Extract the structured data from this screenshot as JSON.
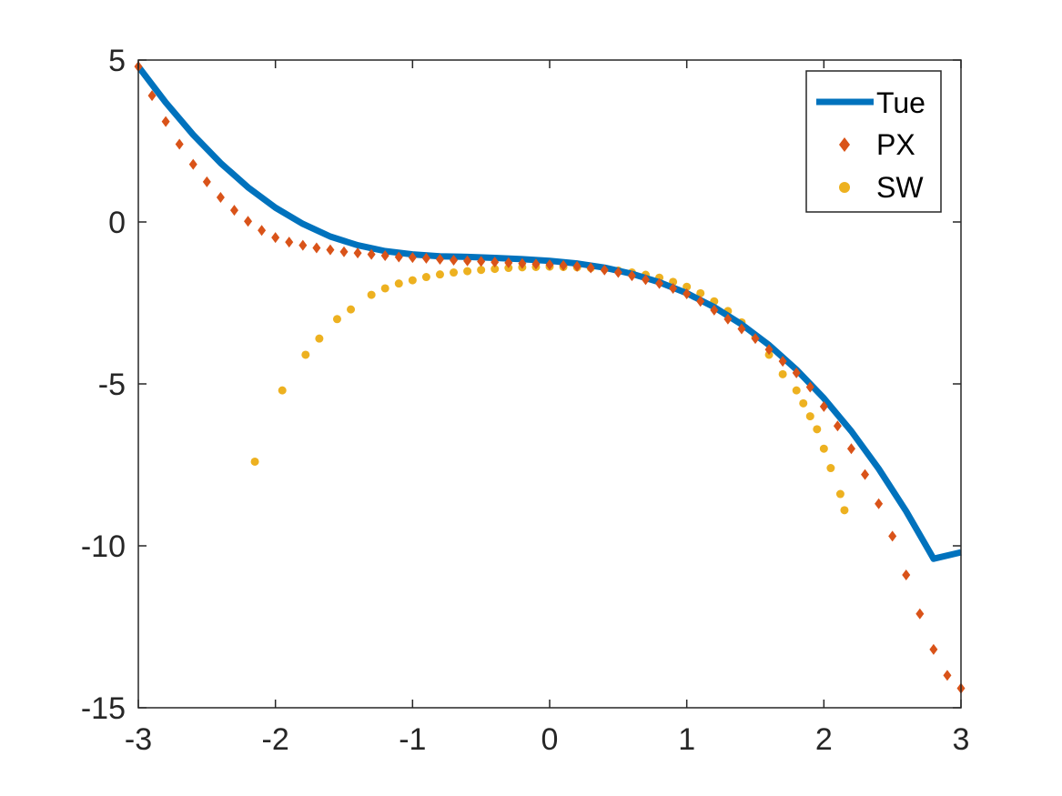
{
  "chart_data": {
    "type": "scatter",
    "title": "",
    "xlabel": "",
    "ylabel": "",
    "xlim": [
      -3,
      3
    ],
    "ylim": [
      -15,
      5
    ],
    "xticks": [
      -3,
      -2,
      -1,
      0,
      1,
      2,
      3
    ],
    "yticks": [
      -15,
      -10,
      -5,
      0,
      5
    ],
    "grid": false,
    "legend_position": "top-right",
    "series": [
      {
        "name": "Tue",
        "kind": "line",
        "color": "#0072BD",
        "x": [
          -3.0,
          -2.8,
          -2.6,
          -2.4,
          -2.2,
          -2.0,
          -1.8,
          -1.6,
          -1.4,
          -1.2,
          -1.0,
          -0.8,
          -0.6,
          -0.4,
          -0.2,
          0.0,
          0.2,
          0.4,
          0.6,
          0.8,
          1.0,
          1.2,
          1.4,
          1.6,
          1.8,
          2.0,
          2.2,
          2.4,
          2.6,
          2.8,
          3.0
        ],
        "y": [
          4.8,
          3.69,
          2.69,
          1.82,
          1.07,
          0.44,
          -0.06,
          -0.45,
          -0.72,
          -0.9,
          -1.0,
          -1.06,
          -1.08,
          -1.11,
          -1.15,
          -1.2,
          -1.28,
          -1.41,
          -1.6,
          -1.86,
          -2.2,
          -2.63,
          -3.16,
          -3.8,
          -4.56,
          -5.44,
          -6.46,
          -7.62,
          -8.93,
          -10.4,
          -10.2
        ]
      },
      {
        "name": "PX",
        "kind": "diamond",
        "color": "#D95319",
        "x": [
          -3.0,
          -2.9,
          -2.8,
          -2.7,
          -2.6,
          -2.5,
          -2.4,
          -2.3,
          -2.2,
          -2.1,
          -2.0,
          -1.9,
          -1.8,
          -1.7,
          -1.6,
          -1.5,
          -1.4,
          -1.3,
          -1.2,
          -1.1,
          -1.0,
          -0.9,
          -0.8,
          -0.7,
          -0.6,
          -0.5,
          -0.4,
          -0.3,
          -0.2,
          -0.1,
          0.0,
          0.1,
          0.2,
          0.3,
          0.4,
          0.5,
          0.6,
          0.7,
          0.8,
          0.9,
          1.0,
          1.1,
          1.2,
          1.3,
          1.4,
          1.5,
          1.6,
          1.7,
          1.8,
          1.9,
          2.0,
          2.1,
          2.2,
          2.3,
          2.4,
          2.5,
          2.6,
          2.7,
          2.8,
          2.9,
          3.0
        ],
        "y": [
          4.8,
          3.9,
          3.1,
          2.4,
          1.78,
          1.24,
          0.76,
          0.36,
          0.02,
          -0.26,
          -0.48,
          -0.62,
          -0.72,
          -0.8,
          -0.86,
          -0.92,
          -0.96,
          -1.0,
          -1.04,
          -1.08,
          -1.1,
          -1.12,
          -1.15,
          -1.18,
          -1.2,
          -1.22,
          -1.24,
          -1.26,
          -1.28,
          -1.3,
          -1.32,
          -1.34,
          -1.37,
          -1.42,
          -1.48,
          -1.56,
          -1.66,
          -1.78,
          -1.9,
          -2.05,
          -2.22,
          -2.45,
          -2.72,
          -3.0,
          -3.3,
          -3.6,
          -3.94,
          -4.3,
          -4.66,
          -5.1,
          -5.7,
          -6.3,
          -7.0,
          -7.8,
          -8.7,
          -9.7,
          -10.9,
          -12.1,
          -13.2,
          -14.0,
          -14.4
        ]
      },
      {
        "name": "SW",
        "kind": "dot",
        "color": "#EDB120",
        "x": [
          -2.15,
          -1.95,
          -1.78,
          -1.68,
          -1.55,
          -1.45,
          -1.3,
          -1.2,
          -1.1,
          -1.0,
          -0.9,
          -0.8,
          -0.7,
          -0.6,
          -0.5,
          -0.4,
          -0.3,
          -0.2,
          -0.1,
          0.0,
          0.1,
          0.2,
          0.3,
          0.4,
          0.5,
          0.6,
          0.7,
          0.8,
          0.9,
          1.0,
          1.1,
          1.2,
          1.3,
          1.4,
          1.5,
          1.6,
          1.7,
          1.8,
          1.85,
          1.9,
          1.95,
          2.0,
          2.05,
          2.12,
          2.15
        ],
        "y": [
          -7.4,
          -5.2,
          -4.1,
          -3.6,
          -3.0,
          -2.7,
          -2.25,
          -2.05,
          -1.9,
          -1.8,
          -1.7,
          -1.62,
          -1.56,
          -1.52,
          -1.48,
          -1.45,
          -1.42,
          -1.4,
          -1.39,
          -1.38,
          -1.39,
          -1.4,
          -1.42,
          -1.45,
          -1.5,
          -1.56,
          -1.63,
          -1.72,
          -1.85,
          -2.0,
          -2.2,
          -2.45,
          -2.75,
          -3.1,
          -3.55,
          -4.1,
          -4.7,
          -5.2,
          -5.6,
          -6.0,
          -6.4,
          -7.0,
          -7.6,
          -8.4,
          -8.9
        ]
      }
    ]
  }
}
